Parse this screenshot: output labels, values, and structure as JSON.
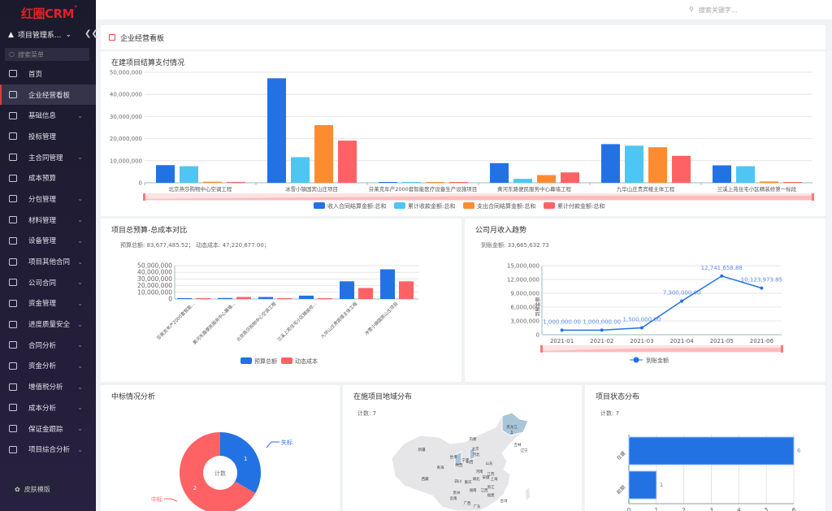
{
  "sidebar": {
    "logo": "红圈CRM",
    "logo_mark": "°",
    "project": "项目管理系...",
    "search_placeholder": "搜索菜单",
    "skin": "皮肤模版",
    "items": [
      {
        "label": "首页",
        "expand": false
      },
      {
        "label": "企业经营看板",
        "expand": false,
        "active": true
      },
      {
        "label": "基础信息",
        "expand": true
      },
      {
        "label": "投标管理",
        "expand": false
      },
      {
        "label": "主合同管理",
        "expand": true
      },
      {
        "label": "成本预算",
        "expand": false
      },
      {
        "label": "分包管理",
        "expand": true
      },
      {
        "label": "材料管理",
        "expand": true
      },
      {
        "label": "设备管理",
        "expand": true
      },
      {
        "label": "项目其他合同",
        "expand": true
      },
      {
        "label": "公司合同",
        "expand": true
      },
      {
        "label": "资金管理",
        "expand": true
      },
      {
        "label": "进度质量安全",
        "expand": true
      },
      {
        "label": "合同分析",
        "expand": true
      },
      {
        "label": "资金分析",
        "expand": true
      },
      {
        "label": "增值税分析",
        "expand": true
      },
      {
        "label": "成本分析",
        "expand": true
      },
      {
        "label": "保证金跟踪",
        "expand": true
      },
      {
        "label": "项目综合分析",
        "expand": true
      }
    ]
  },
  "topbar": {
    "search_placeholder": "搜索关键字..."
  },
  "page": {
    "title": "企业经营看板"
  },
  "chart_data": [
    {
      "type": "bar",
      "title": "在建项目结算支付情况",
      "ylim": [
        0,
        50000000
      ],
      "yticks": [
        "0",
        "10,000,000",
        "20,000,000",
        "30,000,000",
        "40,000,000",
        "50,000,000"
      ],
      "grid": true,
      "legend": "bottom",
      "categories": [
        "北京燕莎购物中心空调工程",
        "冰雪小镇国宾山庄项目",
        "芬莱克年产2000套智能医疗设备生产设施项目",
        "黄河东路便民服务中心幕墙工程",
        "九华山庄贵宾楼主体工程",
        "兰溪上苑住宅小区精装修第一标段"
      ],
      "series": [
        {
          "name": "收入合同结算金额:总和",
          "color": "#2272e4",
          "values": [
            8000000,
            47300000,
            200000,
            8900000,
            17500000,
            7900000
          ]
        },
        {
          "name": "累计收款金额:总和",
          "color": "#4fc5f3",
          "values": [
            7500000,
            11600000,
            200000,
            1800000,
            16800000,
            7500000
          ]
        },
        {
          "name": "支出合同结算金额:总和",
          "color": "#fd8c30",
          "values": [
            500000,
            26100000,
            200000,
            3500000,
            16100000,
            600000
          ]
        },
        {
          "name": "累计付款金额:总和",
          "color": "#fe6265",
          "values": [
            200000,
            19100000,
            200000,
            4700000,
            12200000,
            100000
          ]
        }
      ]
    },
    {
      "type": "bar",
      "title": "项目总预算-总成本对比",
      "summary": "预算总额: 83,677,485.52；  动态成本: 47,220,677.00；",
      "ylim": [
        0,
        50000000
      ],
      "yticks": [
        "0",
        "10,000,000",
        "20,000,000",
        "30,000,000",
        "40,000,000",
        "50,000,000"
      ],
      "legend": "bottom",
      "categories": [
        "芬莱克年产2000套智能...",
        "黄河东路便民服务中心幕墙...",
        "北京燕莎购物中心空调工程",
        "兰溪上苑住宅小区精装修...",
        "九华山庄贵宾楼主体工程",
        "冰雪小镇国宾山庄项目"
      ],
      "series": [
        {
          "name": "预算总额",
          "color": "#2272e4",
          "values": [
            1200000,
            1500000,
            3000000,
            5000000,
            26500000,
            44500000
          ]
        },
        {
          "name": "动态成本",
          "color": "#fe6265",
          "values": [
            500000,
            3000000,
            300000,
            800000,
            16500000,
            26500000
          ]
        }
      ]
    },
    {
      "type": "line",
      "title": "公司月收入趋势",
      "summary": "到账金额: 33,665,632.73",
      "ylabel": "到账金额",
      "ylim": [
        0,
        15000000
      ],
      "yticks": [
        "0",
        "3,000,000",
        "6,000,000",
        "9,000,000",
        "12,000,000",
        "15,000,000"
      ],
      "legend": "bottom",
      "categories": [
        "2021-01",
        "2021-02",
        "2021-03",
        "2021-04",
        "2021-05",
        "2021-06"
      ],
      "series": [
        {
          "name": "到账金额",
          "color": "#2272e4",
          "values": [
            1000000,
            1000000,
            1500000,
            7300000,
            12741658.88,
            10123973.85
          ],
          "labels": [
            "1,000,000.00",
            "1,000,000.00",
            "1,500,000.00",
            "7,300,000.00",
            "12,741,658.88",
            "10,123,973.85"
          ]
        }
      ]
    },
    {
      "type": "pie",
      "title": "中标情况分析",
      "center_label": "计数",
      "slices": [
        {
          "name": "失标",
          "value": 1,
          "color": "#2272e4"
        },
        {
          "name": "中标",
          "value": 2,
          "color": "#fe6265"
        }
      ]
    },
    {
      "type": "map",
      "title": "在施项目地域分布",
      "summary": "计数: 7",
      "regions": [
        "黑龙江",
        "内蒙",
        "吉林",
        "新疆",
        "辽宁",
        "北京",
        "河北",
        "甘肃",
        "宁夏",
        "山西",
        "陕西",
        "山东",
        "青海",
        "河南",
        "江苏",
        "安徽",
        "西藏",
        "四川",
        "重庆",
        "湖北",
        "上海",
        "浙江",
        "贵州",
        "湖南",
        "江西",
        "福建",
        "云南",
        "广西",
        "广东",
        "台湾"
      ],
      "highlighted": [
        {
          "name": "黑龙江",
          "value": 1
        }
      ]
    },
    {
      "type": "bar",
      "orientation": "horizontal",
      "title": "项目状态分布",
      "summary": "计数: 7",
      "xlim": [
        0,
        6
      ],
      "xticks": [
        "0",
        "1",
        "2",
        "3",
        "4",
        "5",
        "6"
      ],
      "categories": [
        "在建",
        "前期"
      ],
      "values": [
        6,
        1
      ],
      "color": "#2272e4"
    }
  ]
}
